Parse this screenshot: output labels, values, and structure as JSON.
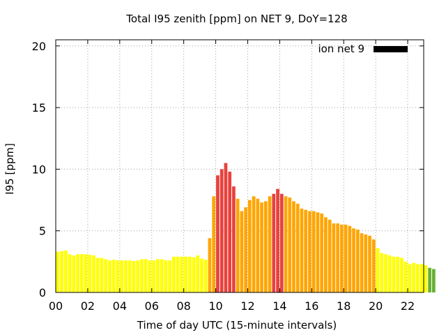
{
  "chart_data": {
    "type": "bar",
    "title": "Total I95 zenith [ppm] on NET 9, DoY=128",
    "xlabel": "Time of day UTC (15-minute intervals)",
    "ylabel": "I95 [ppm]",
    "xlim": [
      0,
      23
    ],
    "ylim": [
      0,
      20.5
    ],
    "x_ticks": [
      "00",
      "02",
      "04",
      "06",
      "08",
      "10",
      "12",
      "14",
      "16",
      "18",
      "20",
      "22"
    ],
    "y_ticks": [
      "0",
      "5",
      "10",
      "15",
      "20"
    ],
    "grid": true,
    "legend": {
      "position": "top-right",
      "entries": [
        {
          "label": "ion net 9",
          "color": "#000000"
        }
      ]
    },
    "color_scale": {
      "green": "#66b032",
      "yellow": "#ffff00",
      "orange": "#ffa500",
      "red": "#e8413c"
    },
    "bar_interval_hours": 0.25,
    "values": [
      3.3,
      3.35,
      3.4,
      3.1,
      3.0,
      3.1,
      3.1,
      3.1,
      3.05,
      3.0,
      2.8,
      2.8,
      2.7,
      2.6,
      2.65,
      2.6,
      2.6,
      2.6,
      2.6,
      2.55,
      2.6,
      2.7,
      2.7,
      2.6,
      2.6,
      2.7,
      2.7,
      2.6,
      2.6,
      2.9,
      2.9,
      2.9,
      2.9,
      2.9,
      2.85,
      3.0,
      2.75,
      2.65,
      4.4,
      7.8,
      9.5,
      10.0,
      10.5,
      9.8,
      8.6,
      7.6,
      6.6,
      6.9,
      7.5,
      7.8,
      7.6,
      7.3,
      7.4,
      7.8,
      8.0,
      8.4,
      8.0,
      7.8,
      7.7,
      7.4,
      7.2,
      6.8,
      6.7,
      6.6,
      6.6,
      6.5,
      6.4,
      6.1,
      5.9,
      5.6,
      5.6,
      5.5,
      5.5,
      5.4,
      5.2,
      5.1,
      4.8,
      4.7,
      4.6,
      4.3,
      3.6,
      3.2,
      3.1,
      3.0,
      2.9,
      2.9,
      2.8,
      2.5,
      2.3,
      2.4,
      2.3,
      2.3,
      2.2,
      2.0,
      1.9
    ],
    "colors": [
      "yellow",
      "yellow",
      "yellow",
      "yellow",
      "yellow",
      "yellow",
      "yellow",
      "yellow",
      "yellow",
      "yellow",
      "yellow",
      "yellow",
      "yellow",
      "yellow",
      "yellow",
      "yellow",
      "yellow",
      "yellow",
      "yellow",
      "yellow",
      "yellow",
      "yellow",
      "yellow",
      "yellow",
      "yellow",
      "yellow",
      "yellow",
      "yellow",
      "yellow",
      "yellow",
      "yellow",
      "yellow",
      "yellow",
      "yellow",
      "yellow",
      "yellow",
      "yellow",
      "yellow",
      "orange",
      "orange",
      "red",
      "red",
      "red",
      "red",
      "red",
      "orange",
      "orange",
      "orange",
      "orange",
      "orange",
      "orange",
      "orange",
      "orange",
      "orange",
      "red",
      "red",
      "red",
      "orange",
      "orange",
      "orange",
      "orange",
      "orange",
      "orange",
      "orange",
      "orange",
      "orange",
      "orange",
      "orange",
      "orange",
      "orange",
      "orange",
      "orange",
      "orange",
      "orange",
      "orange",
      "orange",
      "orange",
      "orange",
      "orange",
      "orange",
      "yellow",
      "yellow",
      "yellow",
      "yellow",
      "yellow",
      "yellow",
      "yellow",
      "yellow",
      "yellow",
      "yellow",
      "yellow",
      "yellow",
      "yellow",
      "green",
      "green"
    ]
  }
}
